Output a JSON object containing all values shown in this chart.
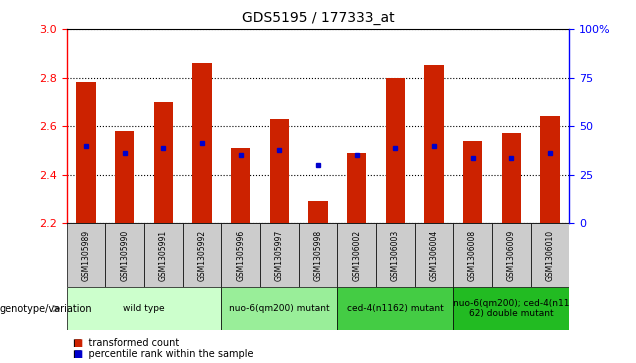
{
  "title": "GDS5195 / 177333_at",
  "samples": [
    "GSM1305989",
    "GSM1305990",
    "GSM1305991",
    "GSM1305992",
    "GSM1305996",
    "GSM1305997",
    "GSM1305998",
    "GSM1306002",
    "GSM1306003",
    "GSM1306004",
    "GSM1306008",
    "GSM1306009",
    "GSM1306010"
  ],
  "red_values": [
    2.78,
    2.58,
    2.7,
    2.86,
    2.51,
    2.63,
    2.29,
    2.49,
    2.8,
    2.85,
    2.54,
    2.57,
    2.64
  ],
  "blue_values": [
    2.52,
    2.49,
    2.51,
    2.53,
    2.48,
    2.5,
    2.44,
    2.48,
    2.51,
    2.52,
    2.47,
    2.47,
    2.49
  ],
  "ymin": 2.2,
  "ymax": 3.0,
  "y_ticks_left": [
    2.2,
    2.4,
    2.6,
    2.8,
    3.0
  ],
  "y_ticks_right": [
    0,
    25,
    50,
    75,
    100
  ],
  "groups": [
    {
      "label": "wild type",
      "indices": [
        0,
        1,
        2,
        3
      ],
      "color": "#ccffcc"
    },
    {
      "label": "nuo-6(qm200) mutant",
      "indices": [
        4,
        5,
        6
      ],
      "color": "#99ee99"
    },
    {
      "label": "ced-4(n1162) mutant",
      "indices": [
        7,
        8,
        9
      ],
      "color": "#44cc44"
    },
    {
      "label": "nuo-6(qm200); ced-4(n11\n62) double mutant",
      "indices": [
        10,
        11,
        12
      ],
      "color": "#22bb22"
    }
  ],
  "legend_red": "transformed count",
  "legend_blue": "percentile rank within the sample",
  "genotype_label": "genotype/variation",
  "bar_width": 0.5,
  "bar_color_red": "#cc2200",
  "bar_color_blue": "#0000cc",
  "gray_color": "#cccccc",
  "grid_color": "#000000",
  "spine_color_left": "#cc0000",
  "spine_color_right": "#0000cc"
}
